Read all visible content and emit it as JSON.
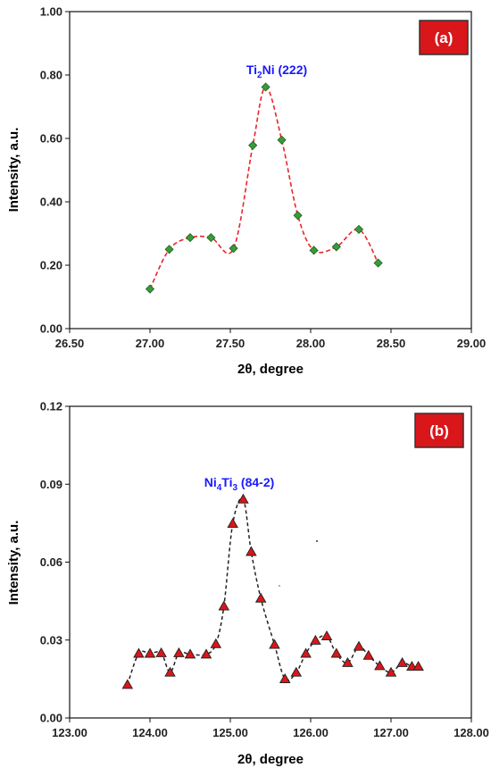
{
  "chart_data": [
    {
      "type": "line",
      "panel": "(a)",
      "xlabel": "2θ, degree",
      "ylabel": "Intensity, a.u.",
      "xlim": [
        26.5,
        29.0
      ],
      "ylim": [
        0.0,
        1.0
      ],
      "xticks": [
        "26.50",
        "27.00",
        "27.50",
        "28.00",
        "28.50",
        "29.00"
      ],
      "yticks": [
        "0.00",
        "0.20",
        "0.40",
        "0.60",
        "0.80",
        "1.00"
      ],
      "annotation": {
        "main": "Ti",
        "sub": "2",
        "rest": "Ni (222)",
        "x": 27.72,
        "y": 0.8
      },
      "line_color": "#e8252a",
      "marker": "diamond",
      "marker_color": "#3a9a3a",
      "x": [
        27.0,
        27.12,
        27.25,
        27.38,
        27.52,
        27.64,
        27.72,
        27.82,
        27.92,
        28.02,
        28.16,
        28.3,
        28.42
      ],
      "y": [
        0.125,
        0.25,
        0.287,
        0.287,
        0.253,
        0.578,
        0.762,
        0.595,
        0.357,
        0.247,
        0.258,
        0.313,
        0.207
      ]
    },
    {
      "type": "line",
      "panel": "(b)",
      "xlabel": "2θ, degree",
      "ylabel": "Intensity, a.u.",
      "xlim": [
        123.0,
        128.0
      ],
      "ylim": [
        0.0,
        0.12
      ],
      "xticks": [
        "123.00",
        "124.00",
        "125.00",
        "126.00",
        "127.00",
        "128.00"
      ],
      "yticks": [
        "0.00",
        "0.03",
        "0.06",
        "0.09",
        "0.12"
      ],
      "annotation": {
        "main": "Ni",
        "sub": "4",
        "mid": "Ti",
        "sub2": "3",
        "rest": " (84-2)",
        "x": 125.15,
        "y": 0.0895
      },
      "line_color": "#222222",
      "marker": "triangle",
      "marker_color": "#d9161a",
      "x": [
        123.72,
        123.86,
        124.0,
        124.14,
        124.25,
        124.36,
        124.5,
        124.7,
        124.82,
        124.92,
        125.03,
        125.16,
        125.26,
        125.38,
        125.55,
        125.68,
        125.82,
        125.94,
        126.06,
        126.2,
        126.32,
        126.46,
        126.6,
        126.72,
        126.86,
        127.0,
        127.14,
        127.26,
        127.34
      ],
      "y": [
        0.0128,
        0.0248,
        0.0248,
        0.025,
        0.0175,
        0.025,
        0.0245,
        0.0245,
        0.0285,
        0.043,
        0.0748,
        0.0842,
        0.064,
        0.046,
        0.0282,
        0.015,
        0.0175,
        0.0248,
        0.0298,
        0.0315,
        0.0248,
        0.0212,
        0.0275,
        0.024,
        0.02,
        0.0175,
        0.0212,
        0.0198,
        0.0198
      ]
    }
  ]
}
